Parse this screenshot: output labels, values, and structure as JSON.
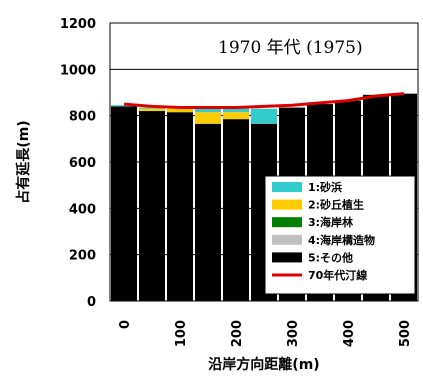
{
  "chart_data": {
    "type": "bar",
    "stacked": true,
    "title": "1970 年代 (1975)",
    "xlabel": "沿岸方向距離(m)",
    "ylabel": "占有延長(m)",
    "ylim": [
      0,
      1200
    ],
    "yticks": [
      "0",
      "200",
      "400",
      "600",
      "800",
      "1000",
      "1200"
    ],
    "xticks": [
      "0",
      "100",
      "200",
      "300",
      "400",
      "500"
    ],
    "x": [
      0,
      50,
      100,
      150,
      200,
      250,
      300,
      350,
      400,
      450,
      500
    ],
    "grid": "horizontal",
    "legend_position": "bottom-right",
    "colors": {
      "砂浜": "#33cccc",
      "砂丘植生": "#ffcc00",
      "海岸林": "#008000",
      "海岸構造物": "#c0c0c0",
      "その他": "#000000",
      "shoreline": "#dd0000"
    },
    "series": [
      {
        "name": "1:砂浜",
        "key": "砂浜",
        "values": [
          5,
          5,
          0,
          20,
          20,
          65,
          0,
          0,
          0,
          0,
          0
        ]
      },
      {
        "name": "2:砂丘植生",
        "key": "砂丘植生",
        "values": [
          0,
          10,
          15,
          50,
          30,
          0,
          0,
          0,
          0,
          0,
          0
        ]
      },
      {
        "name": "3:海岸林",
        "key": "海岸林",
        "values": [
          0,
          0,
          0,
          0,
          0,
          0,
          0,
          0,
          0,
          0,
          0
        ]
      },
      {
        "name": "4:海岸構造物",
        "key": "海岸構造物",
        "values": [
          0,
          0,
          0,
          0,
          0,
          0,
          0,
          0,
          0,
          0,
          0
        ]
      },
      {
        "name": "5:その他",
        "key": "その他",
        "values": [
          840,
          820,
          815,
          765,
          785,
          765,
          835,
          850,
          865,
          890,
          895
        ]
      }
    ],
    "line": {
      "name": "70年代汀線",
      "values": [
        850,
        840,
        835,
        835,
        835,
        840,
        845,
        855,
        865,
        885,
        895
      ]
    }
  }
}
